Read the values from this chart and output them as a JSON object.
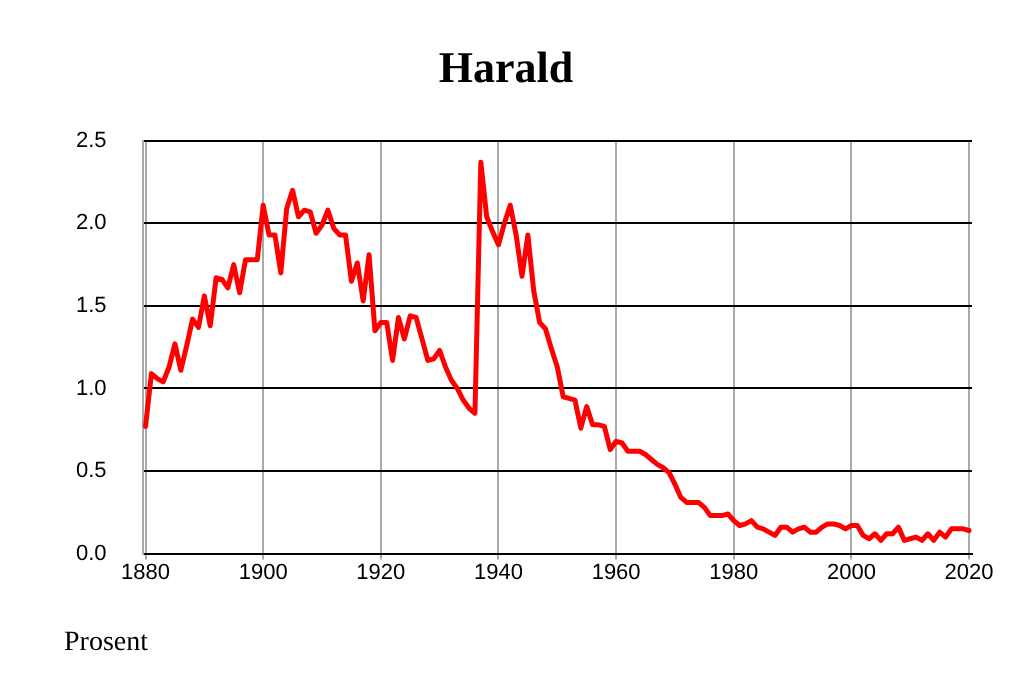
{
  "chart_data": {
    "type": "line",
    "title": "Harald",
    "annotations": [
      "Prosent"
    ],
    "x": [
      1880,
      1881,
      1882,
      1883,
      1884,
      1885,
      1886,
      1887,
      1888,
      1889,
      1890,
      1891,
      1892,
      1893,
      1894,
      1895,
      1896,
      1897,
      1898,
      1899,
      1900,
      1901,
      1902,
      1903,
      1904,
      1905,
      1906,
      1907,
      1908,
      1909,
      1910,
      1911,
      1912,
      1913,
      1914,
      1915,
      1916,
      1917,
      1918,
      1919,
      1920,
      1921,
      1922,
      1923,
      1924,
      1925,
      1926,
      1927,
      1928,
      1929,
      1930,
      1931,
      1932,
      1933,
      1934,
      1935,
      1936,
      1937,
      1938,
      1939,
      1940,
      1941,
      1942,
      1943,
      1944,
      1945,
      1946,
      1947,
      1948,
      1949,
      1950,
      1951,
      1952,
      1953,
      1954,
      1955,
      1956,
      1957,
      1958,
      1959,
      1960,
      1961,
      1962,
      1963,
      1964,
      1965,
      1966,
      1967,
      1968,
      1969,
      1970,
      1971,
      1972,
      1973,
      1974,
      1975,
      1976,
      1977,
      1978,
      1979,
      1980,
      1981,
      1982,
      1983,
      1984,
      1985,
      1986,
      1987,
      1988,
      1989,
      1990,
      1991,
      1992,
      1993,
      1994,
      1995,
      1996,
      1997,
      1998,
      1999,
      2000,
      2001,
      2002,
      2003,
      2004,
      2005,
      2006,
      2007,
      2008,
      2009,
      2010,
      2011,
      2012,
      2013,
      2014,
      2015,
      2016,
      2017,
      2018,
      2019,
      2020
    ],
    "series": [
      {
        "color": "#ff0000",
        "values": [
          0.77,
          1.09,
          1.06,
          1.04,
          1.13,
          1.27,
          1.11,
          1.26,
          1.42,
          1.37,
          1.56,
          1.38,
          1.67,
          1.66,
          1.61,
          1.75,
          1.58,
          1.78,
          1.78,
          1.78,
          2.11,
          1.93,
          1.93,
          1.7,
          2.09,
          2.2,
          2.04,
          2.08,
          2.07,
          1.94,
          1.99,
          2.08,
          1.97,
          1.93,
          1.93,
          1.65,
          1.76,
          1.53,
          1.81,
          1.35,
          1.4,
          1.4,
          1.17,
          1.43,
          1.3,
          1.44,
          1.43,
          1.3,
          1.17,
          1.18,
          1.23,
          1.13,
          1.05,
          1.0,
          0.93,
          0.88,
          0.85,
          2.37,
          2.04,
          1.95,
          1.87,
          2.0,
          2.11,
          1.93,
          1.68,
          1.93,
          1.59,
          1.4,
          1.36,
          1.24,
          1.13,
          0.95,
          0.94,
          0.93,
          0.76,
          0.89,
          0.78,
          0.78,
          0.77,
          0.63,
          0.68,
          0.67,
          0.62,
          0.62,
          0.62,
          0.6,
          0.57,
          0.54,
          0.52,
          0.49,
          0.42,
          0.34,
          0.31,
          0.31,
          0.31,
          0.28,
          0.23,
          0.23,
          0.23,
          0.24,
          0.2,
          0.17,
          0.18,
          0.2,
          0.16,
          0.15,
          0.13,
          0.11,
          0.16,
          0.16,
          0.13,
          0.15,
          0.16,
          0.13,
          0.13,
          0.16,
          0.18,
          0.18,
          0.17,
          0.15,
          0.17,
          0.17,
          0.11,
          0.09,
          0.12,
          0.08,
          0.12,
          0.12,
          0.16,
          0.08,
          0.09,
          0.1,
          0.08,
          0.12,
          0.08,
          0.13,
          0.1,
          0.15,
          0.15,
          0.15,
          0.14
        ]
      }
    ],
    "xlim": [
      1879.5,
      2020.5
    ],
    "xticks": [
      1880,
      1900,
      1920,
      1940,
      1960,
      1980,
      2000,
      2020
    ],
    "ylim": [
      0,
      2.5
    ],
    "yticks": [
      {
        "value": 0,
        "label": "0.0"
      },
      0.5,
      {
        "value": 1,
        "label": "1.0"
      },
      1.5,
      {
        "value": 2,
        "label": "2.0"
      },
      2.5
    ],
    "grid": true,
    "legend": false,
    "marker": "none",
    "line_style": "solid"
  }
}
